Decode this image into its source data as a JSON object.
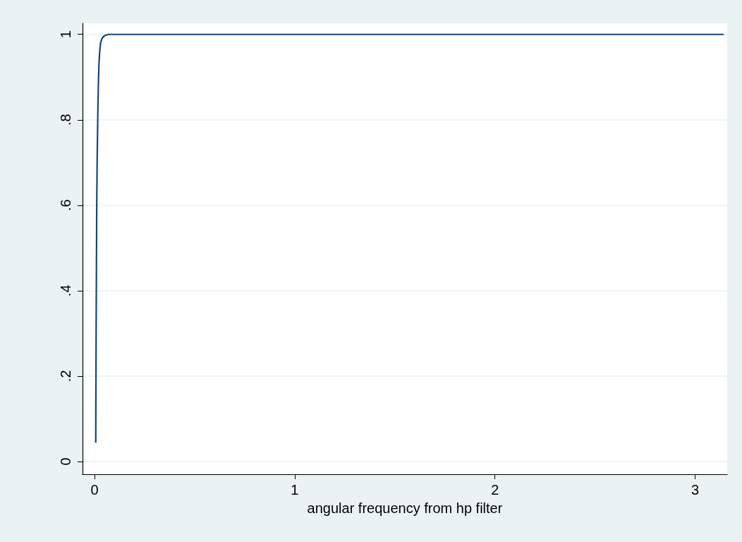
{
  "chart_data": {
    "type": "line",
    "xlabel": "angular frequency from hp filter",
    "series": [
      {
        "color": "#1a476f",
        "x": [
          0.006,
          0.007,
          0.008,
          0.0095,
          0.011,
          0.013,
          0.016,
          0.019,
          0.022,
          0.026,
          0.03,
          0.037,
          0.045,
          0.055,
          0.07,
          0.1,
          0.14,
          1,
          2,
          3.14
        ],
        "values": [
          0.045,
          0.18,
          0.3,
          0.45,
          0.6,
          0.7,
          0.8,
          0.88,
          0.93,
          0.96,
          0.98,
          0.99,
          0.995,
          0.998,
          1,
          1,
          1,
          1,
          1,
          1
        ]
      }
    ],
    "xlim": [
      -0.06,
      3.16
    ],
    "xticks": [
      0,
      1,
      2,
      3
    ],
    "ylim": [
      -0.03,
      1.026
    ],
    "yticks": [
      0,
      {
        "value": 0.2,
        "label": ".2"
      },
      {
        "value": 0.4,
        "label": ".4"
      },
      {
        "value": 0.6,
        "label": ".6"
      },
      {
        "value": 0.8,
        "label": ".8"
      },
      1
    ],
    "grid": "y",
    "marker": "none",
    "line_style": "solid"
  }
}
